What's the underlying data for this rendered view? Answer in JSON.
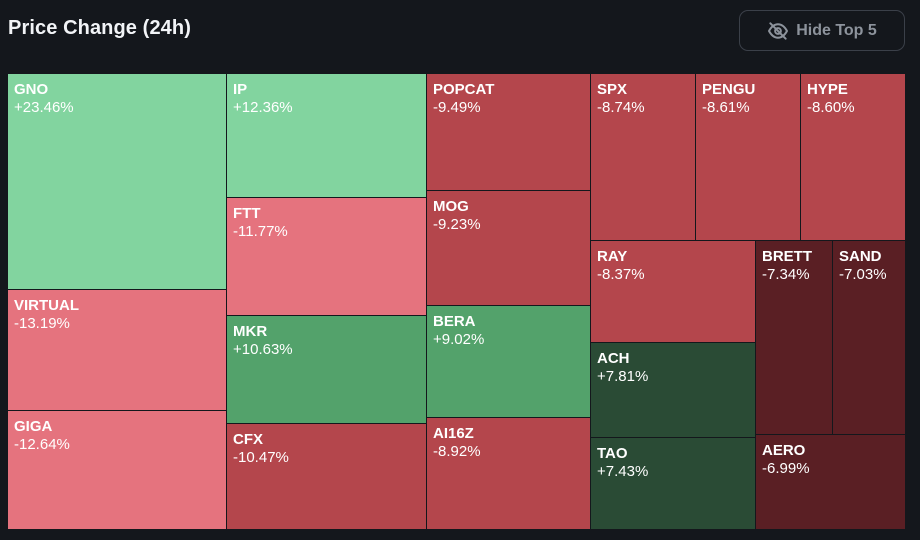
{
  "header": {
    "title": "Price Change (24h)",
    "hide_button_label": "Hide Top 5"
  },
  "icons": {
    "hide": "eye-off-icon"
  },
  "colors": {
    "strong_green": "#82d49f",
    "mid_green": "#53a26b",
    "dark_green": "#2a4b35",
    "light_red": "#e5737e",
    "mid_red": "#b4464c",
    "dark_red": "#5a1f24",
    "background": "#14171c"
  },
  "chart_data": {
    "type": "treemap",
    "title": "Price Change (24h)",
    "unit": "%",
    "items": [
      {
        "name": "GNO",
        "value": 23.46,
        "label": "+23.46%",
        "color": "#82d49f"
      },
      {
        "name": "VIRTUAL",
        "value": -13.19,
        "label": "-13.19%",
        "color": "#e5737e"
      },
      {
        "name": "GIGA",
        "value": -12.64,
        "label": "-12.64%",
        "color": "#e5737e"
      },
      {
        "name": "IP",
        "value": 12.36,
        "label": "+12.36%",
        "color": "#82d49f"
      },
      {
        "name": "FTT",
        "value": -11.77,
        "label": "-11.77%",
        "color": "#e5737e"
      },
      {
        "name": "MKR",
        "value": 10.63,
        "label": "+10.63%",
        "color": "#53a26b"
      },
      {
        "name": "CFX",
        "value": -10.47,
        "label": "-10.47%",
        "color": "#b4464c"
      },
      {
        "name": "POPCAT",
        "value": -9.49,
        "label": "-9.49%",
        "color": "#b4464c"
      },
      {
        "name": "MOG",
        "value": -9.23,
        "label": "-9.23%",
        "color": "#b4464c"
      },
      {
        "name": "BERA",
        "value": 9.02,
        "label": "+9.02%",
        "color": "#53a26b"
      },
      {
        "name": "AI16Z",
        "value": -8.92,
        "label": "-8.92%",
        "color": "#b4464c"
      },
      {
        "name": "SPX",
        "value": -8.74,
        "label": "-8.74%",
        "color": "#b4464c"
      },
      {
        "name": "PENGU",
        "value": -8.61,
        "label": "-8.61%",
        "color": "#b4464c"
      },
      {
        "name": "HYPE",
        "value": -8.6,
        "label": "-8.60%",
        "color": "#b4464c"
      },
      {
        "name": "RAY",
        "value": -8.37,
        "label": "-8.37%",
        "color": "#b4464c"
      },
      {
        "name": "ACH",
        "value": 7.81,
        "label": "+7.81%",
        "color": "#2a4b35"
      },
      {
        "name": "TAO",
        "value": 7.43,
        "label": "+7.43%",
        "color": "#2a4b35"
      },
      {
        "name": "BRETT",
        "value": -7.34,
        "label": "-7.34%",
        "color": "#5a1f24"
      },
      {
        "name": "SAND",
        "value": -7.03,
        "label": "-7.03%",
        "color": "#5a1f24"
      },
      {
        "name": "AERO",
        "value": -6.99,
        "label": "-6.99%",
        "color": "#5a1f24"
      }
    ]
  }
}
